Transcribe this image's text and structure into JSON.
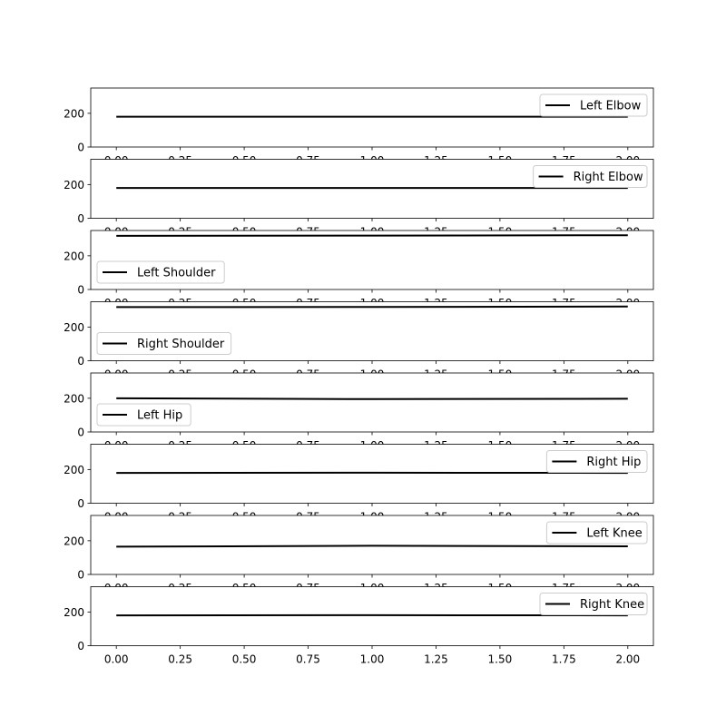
{
  "chart_data": {
    "type": "line",
    "line_color": "#000000",
    "grid": false,
    "xlim": [
      -0.1,
      2.1
    ],
    "ylim": [
      0,
      350
    ],
    "xticks": [
      "0.00",
      "0.25",
      "0.50",
      "0.75",
      "1.00",
      "1.25",
      "1.50",
      "1.75",
      "2.00"
    ],
    "yticks": [
      "0",
      "200"
    ],
    "panels": [
      {
        "name": "Left Elbow",
        "legend": "upper right",
        "x": [
          0,
          1,
          2
        ],
        "y": [
          180,
          180,
          180
        ]
      },
      {
        "name": "Right Elbow",
        "legend": "upper right",
        "x": [
          0,
          1,
          2
        ],
        "y": [
          180,
          180,
          180
        ]
      },
      {
        "name": "Left Shoulder",
        "legend": "lower left",
        "x": [
          0,
          1,
          2
        ],
        "y": [
          318,
          320,
          322
        ]
      },
      {
        "name": "Right Shoulder",
        "legend": "lower left",
        "x": [
          0,
          1,
          2
        ],
        "y": [
          318,
          319,
          322
        ]
      },
      {
        "name": "Left Hip",
        "legend": "lower left",
        "x": [
          0,
          1,
          2
        ],
        "y": [
          200,
          195,
          197
        ]
      },
      {
        "name": "Right Hip",
        "legend": "upper right",
        "x": [
          0,
          1,
          2
        ],
        "y": [
          180,
          181,
          180
        ]
      },
      {
        "name": "Left Knee",
        "legend": "upper right",
        "x": [
          0,
          1,
          2
        ],
        "y": [
          165,
          170,
          167
        ]
      },
      {
        "name": "Right Knee",
        "legend": "upper right",
        "x": [
          0,
          1,
          2
        ],
        "y": [
          180,
          181,
          180
        ]
      }
    ]
  }
}
